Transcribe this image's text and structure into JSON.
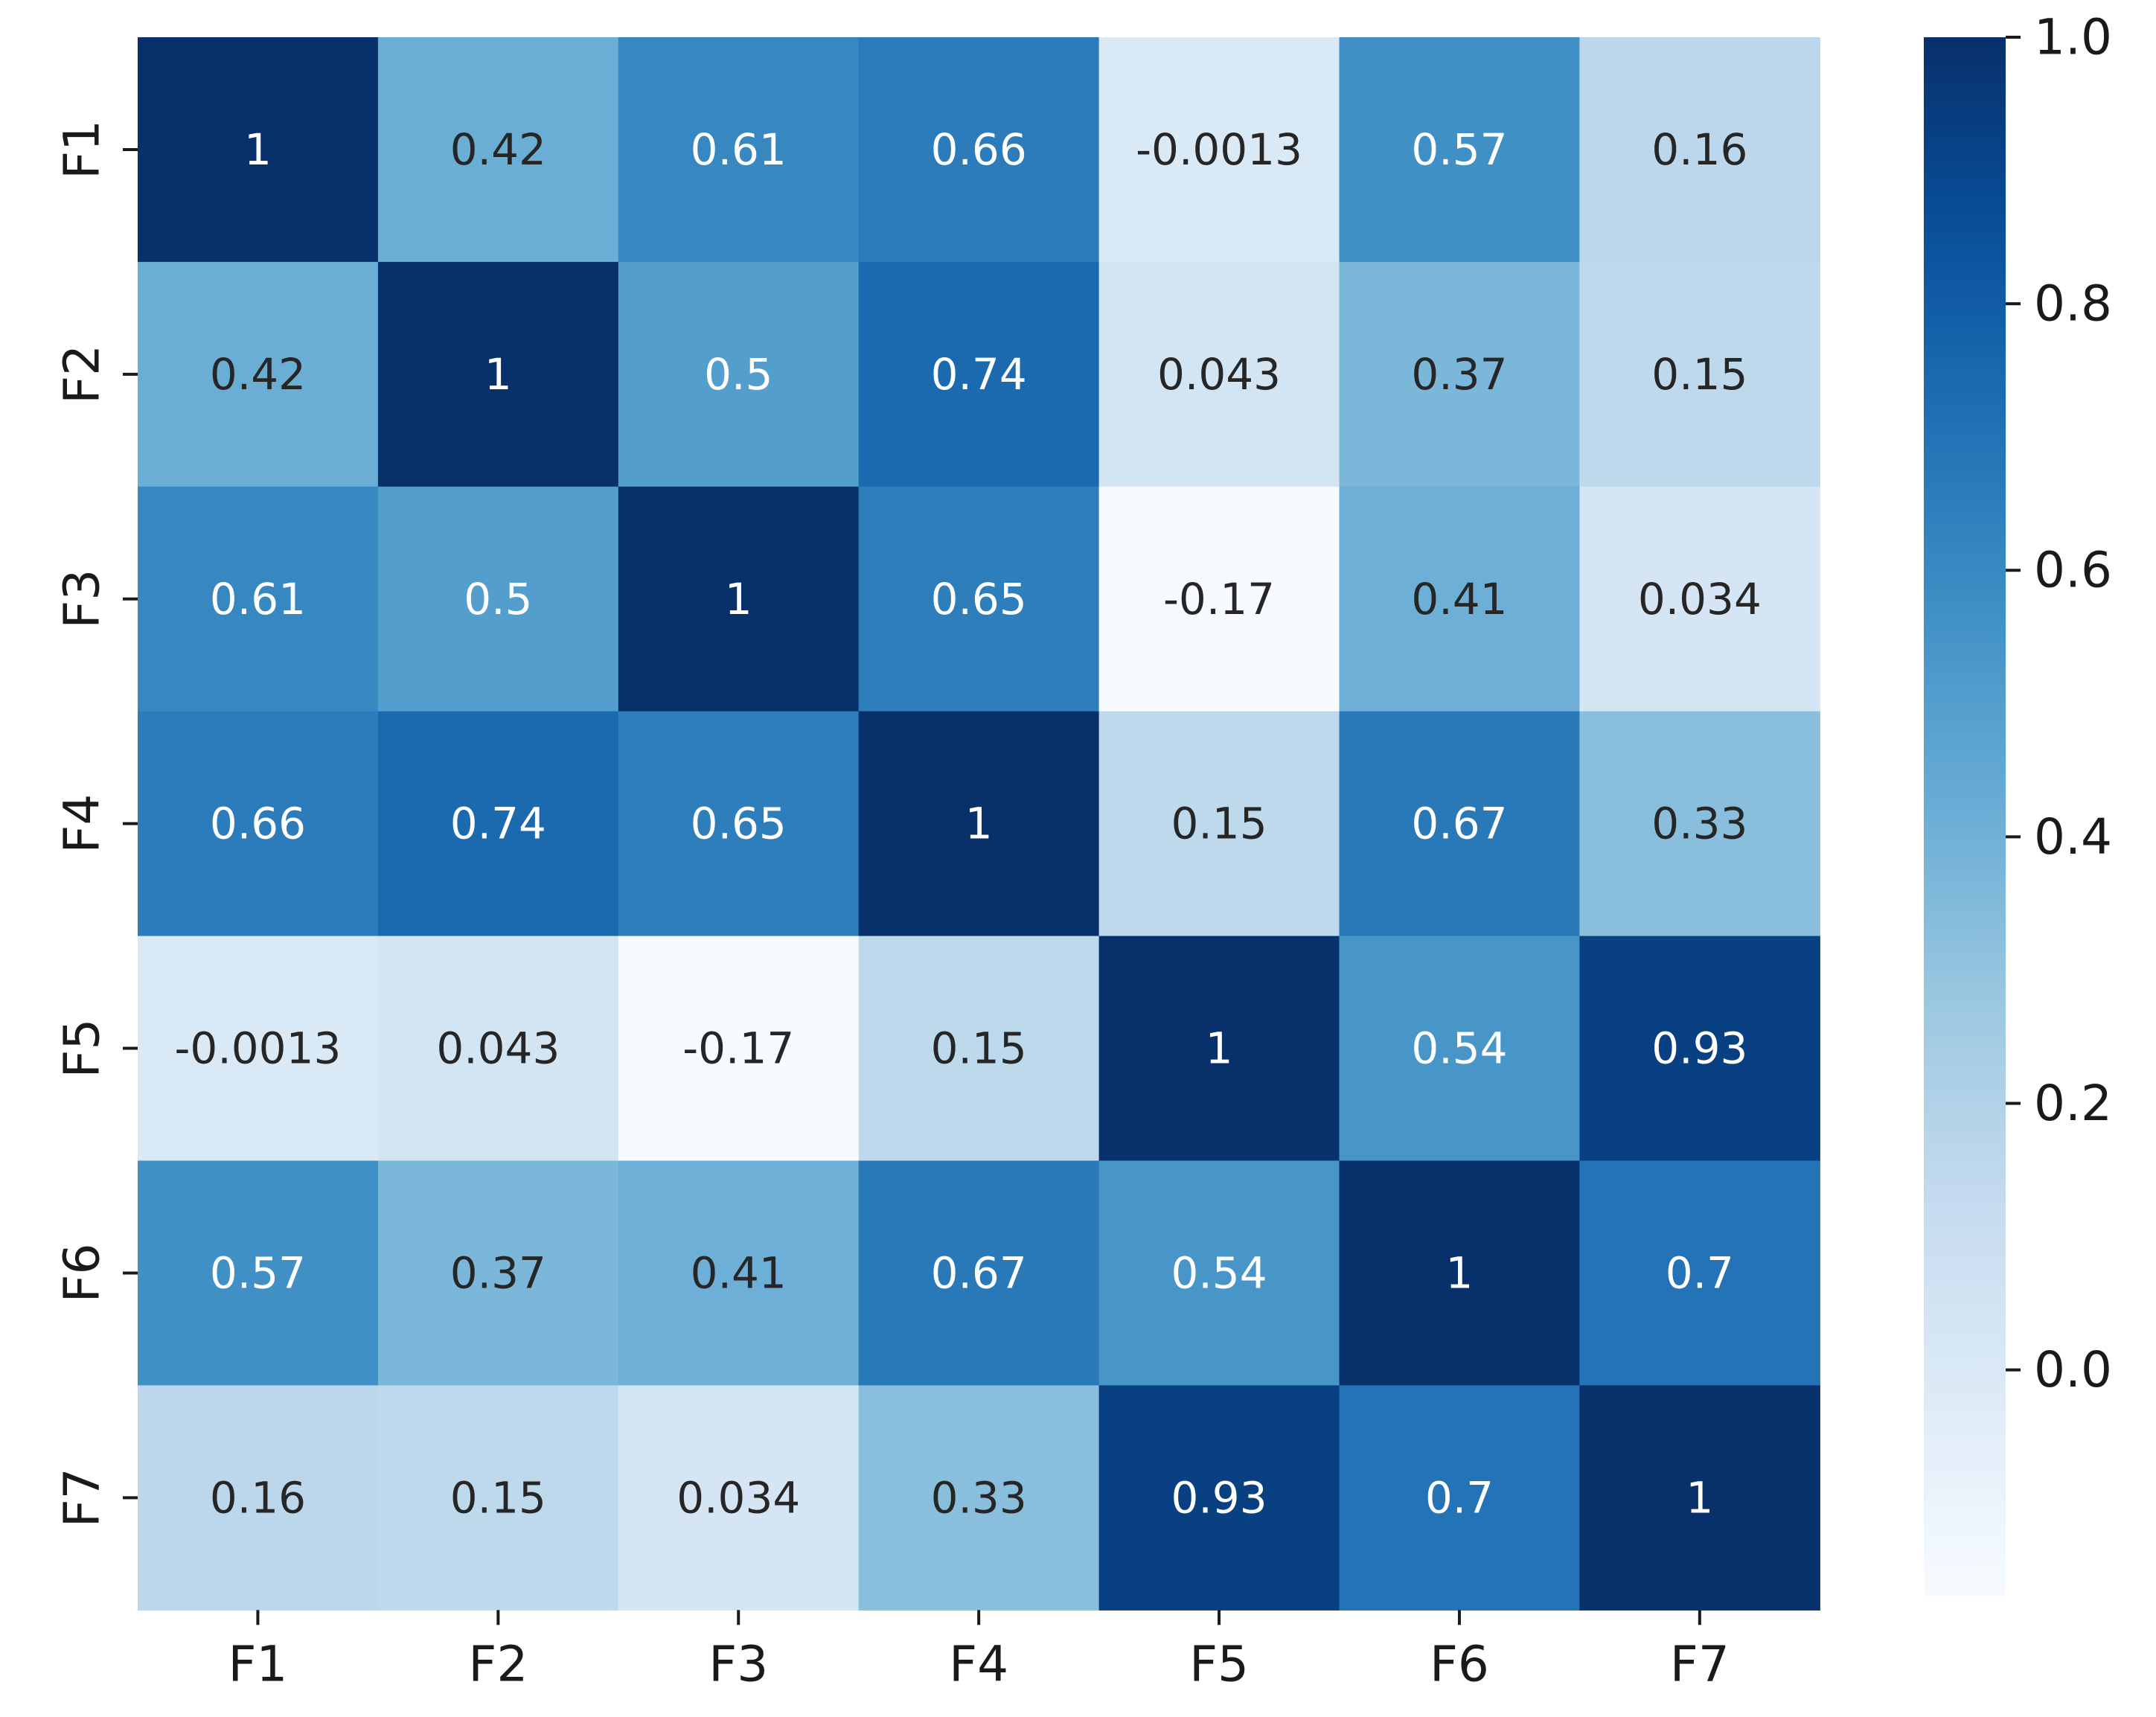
{
  "chart_data": {
    "type": "heatmap",
    "title": "",
    "xlabel": "",
    "ylabel": "",
    "x_labels": [
      "F1",
      "F2",
      "F3",
      "F4",
      "F5",
      "F6",
      "F7"
    ],
    "y_labels": [
      "F1",
      "F2",
      "F3",
      "F4",
      "F5",
      "F6",
      "F7"
    ],
    "values": [
      [
        1,
        0.42,
        0.61,
        0.66,
        -0.0013,
        0.57,
        0.16
      ],
      [
        0.42,
        1,
        0.5,
        0.74,
        0.043,
        0.37,
        0.15
      ],
      [
        0.61,
        0.5,
        1,
        0.65,
        -0.17,
        0.41,
        0.034
      ],
      [
        0.66,
        0.74,
        0.65,
        1,
        0.15,
        0.67,
        0.33
      ],
      [
        -0.0013,
        0.043,
        -0.17,
        0.15,
        1,
        0.54,
        0.93
      ],
      [
        0.57,
        0.37,
        0.41,
        0.67,
        0.54,
        1,
        0.7
      ],
      [
        0.16,
        0.15,
        0.034,
        0.33,
        0.93,
        0.7,
        1
      ]
    ],
    "annotations": [
      [
        "1",
        "0.42",
        "0.61",
        "0.66",
        "-0.0013",
        "0.57",
        "0.16"
      ],
      [
        "0.42",
        "1",
        "0.5",
        "0.74",
        "0.043",
        "0.37",
        "0.15"
      ],
      [
        "0.61",
        "0.5",
        "1",
        "0.65",
        "-0.17",
        "0.41",
        "0.034"
      ],
      [
        "0.66",
        "0.74",
        "0.65",
        "1",
        "0.15",
        "0.67",
        "0.33"
      ],
      [
        "-0.0013",
        "0.043",
        "-0.17",
        "0.15",
        "1",
        "0.54",
        "0.93"
      ],
      [
        "0.57",
        "0.37",
        "0.41",
        "0.67",
        "0.54",
        "1",
        "0.7"
      ],
      [
        "0.16",
        "0.15",
        "0.034",
        "0.33",
        "0.93",
        "0.7",
        "1"
      ]
    ],
    "colormap": "Blues",
    "vmin": -0.17,
    "vmax": 1.0,
    "colorbar": {
      "ticks": [
        1.0,
        0.8,
        0.6,
        0.4,
        0.2,
        0.0
      ],
      "tick_labels": [
        "1.0",
        "0.8",
        "0.6",
        "0.4",
        "0.2",
        "0.0"
      ]
    }
  }
}
